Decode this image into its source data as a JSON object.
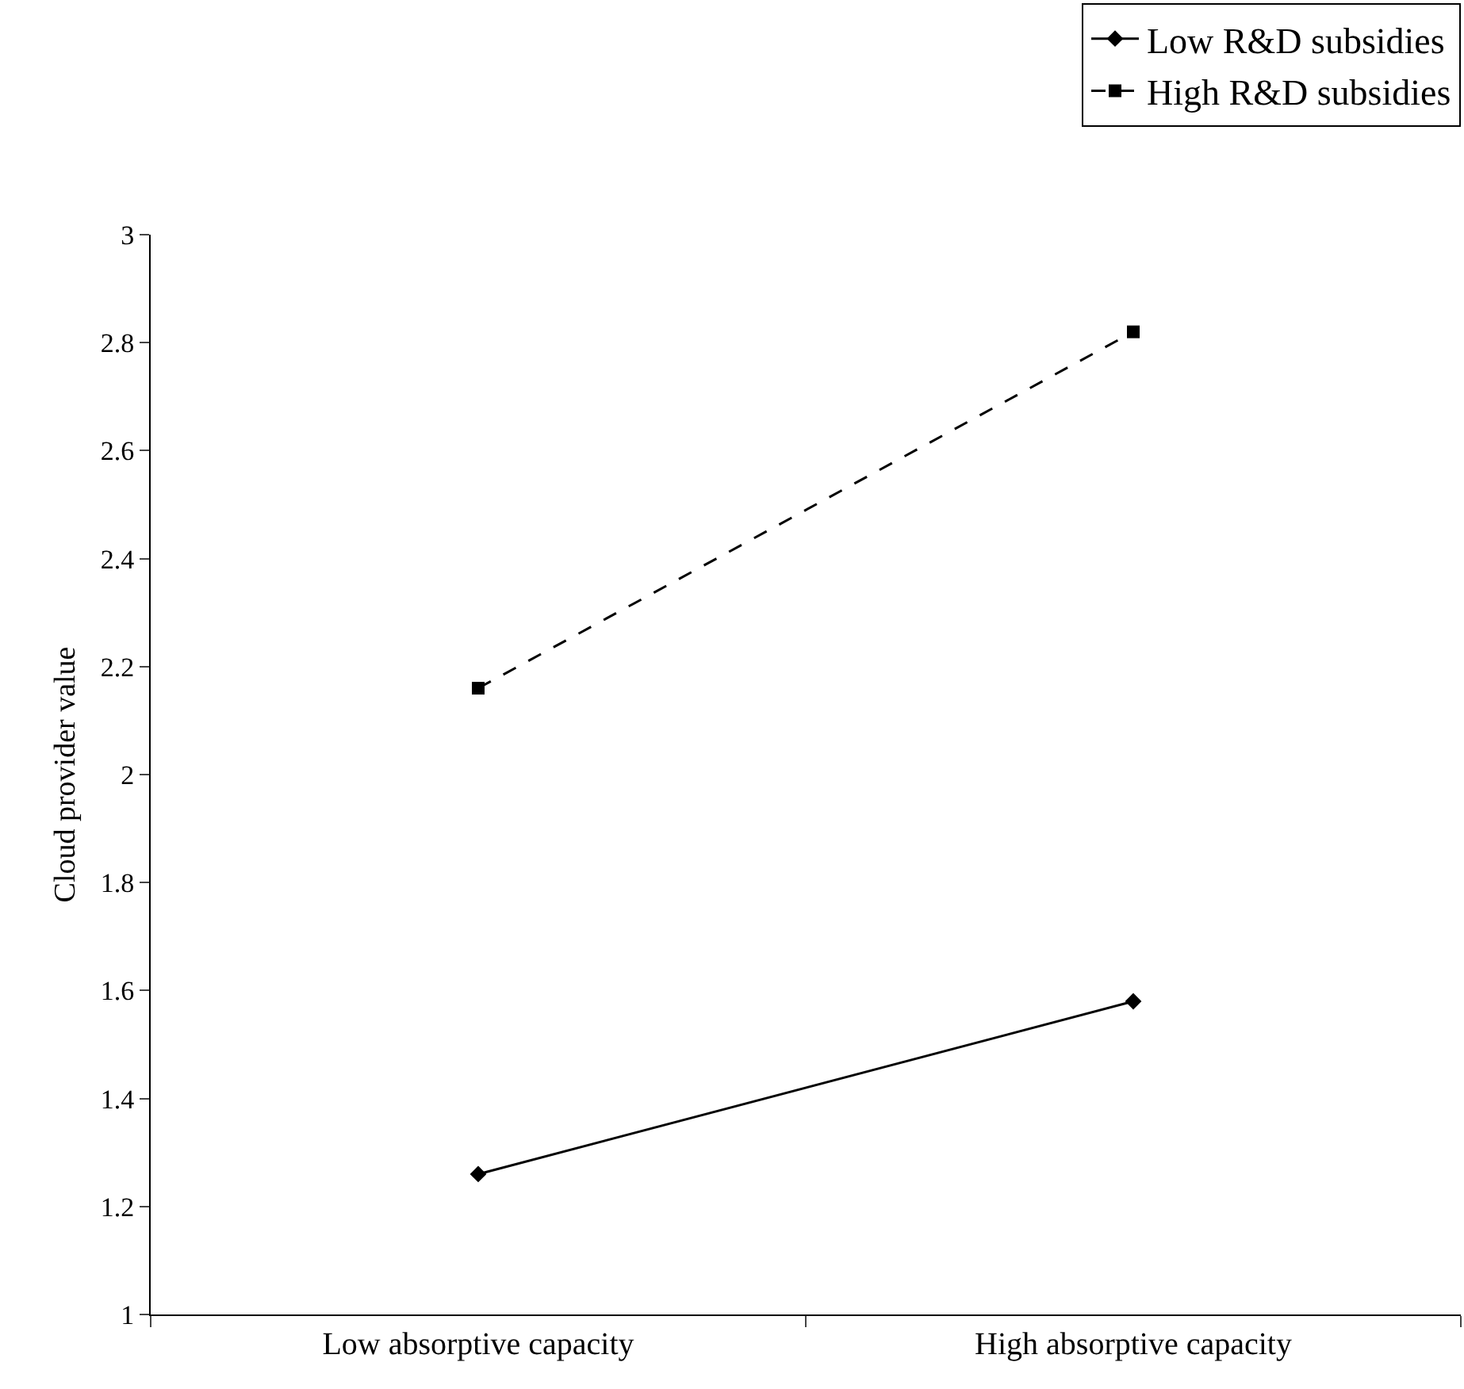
{
  "chart_data": {
    "type": "line",
    "ylabel": "Cloud provider value",
    "categories": [
      "Low absorptive capacity",
      "High absorptive capacity"
    ],
    "series": [
      {
        "name": "Low R&D subsidies",
        "color": "#000000",
        "values": [
          1.26,
          1.58
        ],
        "marker": "diamond",
        "line_style": "solid"
      },
      {
        "name": "High R&D subsidies",
        "color": "#000000",
        "values": [
          2.16,
          2.82
        ],
        "marker": "square",
        "line_style": "dashed"
      }
    ],
    "ylim": [
      1,
      3
    ],
    "yticks": [
      1,
      1.2,
      1.4,
      1.6,
      1.8,
      2,
      2.2,
      2.4,
      2.6,
      2.8,
      3
    ],
    "grid": false,
    "legend": "top right"
  }
}
